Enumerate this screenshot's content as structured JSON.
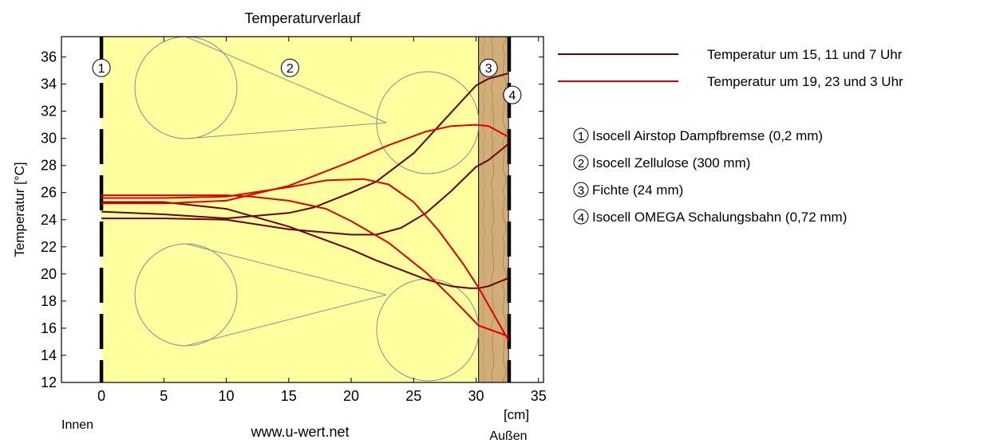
{
  "chart_data": {
    "type": "line",
    "title": "Temperaturverlauf",
    "ylabel": "Temperatur [°C]",
    "xunit": "[cm]",
    "xlim": [
      -3.2,
      35.4
    ],
    "ylim": [
      12,
      37.5
    ],
    "xticks": [
      0,
      5,
      10,
      15,
      20,
      25,
      30,
      35
    ],
    "yticks": [
      12,
      14,
      16,
      18,
      20,
      22,
      24,
      26,
      28,
      30,
      32,
      34,
      36
    ],
    "grid": false,
    "legend_position": "right",
    "inside_label": "Innen",
    "outside_label": "Außen",
    "website": "www.u-wert.net",
    "layers": [
      {
        "id": "1",
        "name": "Isocell Airstop Dampfbremse (0,2 mm)",
        "x_start": 0.0,
        "x_end": 0.02,
        "color": "#ffffa0"
      },
      {
        "id": "2",
        "name": "Isocell Zellulose (300 mm)",
        "x_start": 0.02,
        "x_end": 30.2,
        "color": "#ffffa0"
      },
      {
        "id": "3",
        "name": "Fichte (24 mm)",
        "x_start": 30.2,
        "x_end": 32.6,
        "color": "#d1ad78"
      },
      {
        "id": "4",
        "name": "Isocell OMEGA Schalungsbahn (0,72 mm)",
        "x_start": 32.6,
        "x_end": 32.7,
        "color": "#ffffff"
      }
    ],
    "series": [
      {
        "name": "Temperatur um 15, 11 und 7 Uhr",
        "color": "#6b0000",
        "lines": [
          {
            "x": [
              0,
              5,
              10,
              15,
              17,
              20,
              22,
              25,
              28,
              30,
              31,
              32.6
            ],
            "y": [
              24.6,
              24.4,
              24.1,
              24.5,
              24.9,
              26.0,
              26.8,
              28.9,
              31.9,
              33.9,
              34.4,
              34.8
            ]
          },
          {
            "x": [
              0,
              5,
              10,
              15,
              20,
              22,
              24,
              26,
              28,
              30,
              31,
              32.6
            ],
            "y": [
              24.1,
              24.1,
              24.0,
              23.3,
              22.9,
              22.9,
              23.4,
              24.5,
              26.1,
              27.9,
              28.4,
              29.6
            ]
          },
          {
            "x": [
              0,
              5,
              10,
              15,
              20,
              22,
              24,
              26,
              28,
              29.5,
              30.2,
              31,
              32.6
            ],
            "y": [
              25.3,
              25.3,
              24.8,
              23.5,
              21.8,
              21.0,
              20.3,
              19.6,
              19.1,
              18.95,
              18.95,
              19.1,
              19.7
            ]
          }
        ]
      },
      {
        "name": "Temperatur um 19, 23 und 3 Uhr",
        "color": "#e00000",
        "lines": [
          {
            "x": [
              0,
              5,
              10,
              15,
              20,
              23,
              26,
              28,
              30,
              31,
              32.6
            ],
            "y": [
              25.2,
              25.2,
              25.4,
              26.5,
              28.3,
              29.5,
              30.5,
              30.9,
              31.0,
              30.9,
              30.1
            ]
          },
          {
            "x": [
              0,
              5,
              10,
              15,
              18,
              21,
              23,
              25,
              27,
              29,
              30.2,
              32.6
            ],
            "y": [
              25.6,
              25.6,
              25.7,
              26.4,
              26.9,
              27.0,
              26.6,
              25.3,
              23.2,
              20.7,
              19.0,
              15.1
            ]
          },
          {
            "x": [
              0,
              5,
              10,
              12,
              15,
              18,
              20,
              23,
              26,
              28,
              30.2,
              32.6
            ],
            "y": [
              25.8,
              25.8,
              25.8,
              25.7,
              25.4,
              24.8,
              23.9,
              22.3,
              20.1,
              18.3,
              16.2,
              15.4
            ]
          }
        ]
      }
    ]
  }
}
